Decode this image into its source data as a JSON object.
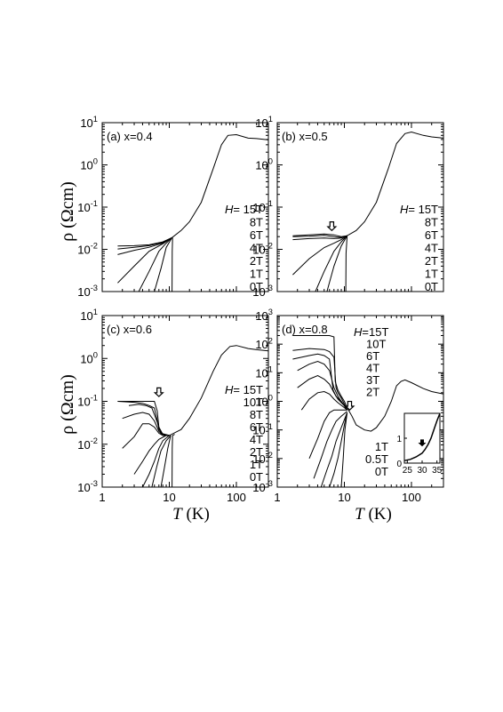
{
  "figure": {
    "ylabel": "ρ (Ωcm)",
    "xlabel_var": "T",
    "xlabel_unit": " (K)"
  },
  "chart_data": [
    {
      "type": "line",
      "panel": "(a) x=0.4",
      "x_scale": "log",
      "y_scale": "log",
      "xlim": [
        1,
        300
      ],
      "ylim": [
        0.001,
        10
      ],
      "x_ticks": [
        "1",
        "10",
        "100"
      ],
      "y_ticks": [
        "10^-3",
        "10^-2",
        "10^-1",
        "10^0",
        "10^1"
      ],
      "field_prefix": "H=",
      "field_labels": [
        "15T",
        "8T",
        "6T",
        "4T",
        "2T",
        "1T",
        "0T"
      ],
      "series": [
        {
          "name": "15T",
          "x": [
            1.7,
            3,
            5,
            8,
            11,
            15,
            20,
            30,
            45,
            60,
            75,
            100,
            150,
            200,
            300
          ],
          "y": [
            0.012,
            0.0122,
            0.0128,
            0.015,
            0.019,
            0.028,
            0.045,
            0.13,
            0.8,
            3.0,
            5.0,
            5.2,
            4.3,
            4.2,
            3.9
          ]
        },
        {
          "name": "8T",
          "x": [
            1.7,
            3,
            5,
            8,
            11
          ],
          "y": [
            0.0102,
            0.0112,
            0.0122,
            0.0145,
            0.019
          ]
        },
        {
          "name": "6T",
          "x": [
            1.7,
            3,
            5,
            8,
            11
          ],
          "y": [
            0.0075,
            0.0095,
            0.0112,
            0.014,
            0.019
          ]
        },
        {
          "name": "4T",
          "x": [
            1.7,
            3,
            5,
            8,
            11
          ],
          "y": [
            0.0016,
            0.004,
            0.009,
            0.0135,
            0.019
          ]
        },
        {
          "name": "2T",
          "x": [
            3.5,
            5,
            7,
            9,
            11
          ],
          "y": [
            0.001,
            0.003,
            0.009,
            0.014,
            0.019
          ]
        },
        {
          "name": "1T",
          "x": [
            6,
            7.5,
            9,
            11
          ],
          "y": [
            0.001,
            0.0035,
            0.011,
            0.019
          ]
        },
        {
          "name": "0T",
          "x": [
            11,
            11.05,
            11.2
          ],
          "y": [
            0.001,
            0.009,
            0.019
          ]
        }
      ]
    },
    {
      "type": "line",
      "panel": "(b) x=0.5",
      "x_scale": "log",
      "y_scale": "log",
      "xlim": [
        1,
        300
      ],
      "ylim": [
        0.001,
        10
      ],
      "x_ticks": [
        "1",
        "10",
        "100"
      ],
      "y_ticks": [
        "10^-3",
        "10^-2",
        "10^-1",
        "10^0",
        "10^1"
      ],
      "field_prefix": "H=",
      "field_labels": [
        "15T",
        "8T",
        "6T",
        "4T",
        "2T",
        "1T",
        "0T"
      ],
      "arrow": {
        "x": 6.5,
        "y": 0.028
      },
      "series": [
        {
          "name": "15T",
          "x": [
            1.7,
            3,
            5,
            7,
            9,
            11,
            15,
            20,
            30,
            45,
            60,
            80,
            100,
            150,
            200,
            300
          ],
          "y": [
            0.021,
            0.022,
            0.023,
            0.022,
            0.02,
            0.021,
            0.028,
            0.045,
            0.13,
            0.8,
            3.2,
            5.5,
            6.0,
            5.0,
            4.6,
            4.3
          ]
        },
        {
          "name": "8T",
          "x": [
            1.7,
            3,
            5,
            7,
            9,
            11
          ],
          "y": [
            0.02,
            0.0205,
            0.0215,
            0.02,
            0.019,
            0.021
          ]
        },
        {
          "name": "6T",
          "x": [
            1.7,
            3,
            5,
            7,
            9,
            11
          ],
          "y": [
            0.017,
            0.018,
            0.0185,
            0.018,
            0.0185,
            0.021
          ]
        },
        {
          "name": "4T",
          "x": [
            1.7,
            3,
            5,
            7,
            9,
            11
          ],
          "y": [
            0.0025,
            0.006,
            0.011,
            0.014,
            0.017,
            0.021
          ]
        },
        {
          "name": "2T",
          "x": [
            3.7,
            5,
            7,
            9,
            11
          ],
          "y": [
            0.001,
            0.003,
            0.009,
            0.015,
            0.021
          ]
        },
        {
          "name": "1T",
          "x": [
            5.5,
            7,
            9,
            11
          ],
          "y": [
            0.001,
            0.004,
            0.012,
            0.021
          ]
        },
        {
          "name": "0T",
          "x": [
            10.5,
            10.6,
            11
          ],
          "y": [
            0.001,
            0.008,
            0.021
          ]
        }
      ]
    },
    {
      "type": "line",
      "panel": "(c) x=0.6",
      "x_scale": "log",
      "y_scale": "log",
      "xlim": [
        1,
        300
      ],
      "ylim": [
        0.001,
        10
      ],
      "x_ticks": [
        "1",
        "10",
        "100"
      ],
      "y_ticks": [
        "10^-3",
        "10^-2",
        "10^-1",
        "10^0",
        "10^1"
      ],
      "field_prefix": "H=",
      "field_labels": [
        "15T",
        "10T",
        "8T",
        "6T",
        "4T",
        "2T",
        "1T",
        "0T"
      ],
      "arrow": {
        "x": 7,
        "y": 0.13
      },
      "series": [
        {
          "name": "15T",
          "x": [
            1.7,
            3,
            5,
            6,
            6.6,
            7,
            8,
            10,
            15,
            20,
            30,
            45,
            60,
            80,
            100,
            150,
            200,
            300
          ],
          "y": [
            0.1,
            0.1,
            0.1,
            0.1,
            0.06,
            0.025,
            0.017,
            0.016,
            0.022,
            0.04,
            0.12,
            0.5,
            1.2,
            1.9,
            2.0,
            1.7,
            1.6,
            1.5
          ]
        },
        {
          "name": "10T",
          "x": [
            1.7,
            3,
            4,
            5,
            6,
            6.5,
            7,
            8,
            10
          ],
          "y": [
            0.1,
            0.095,
            0.09,
            0.08,
            0.07,
            0.04,
            0.022,
            0.017,
            0.016
          ]
        },
        {
          "name": "8T",
          "x": [
            2.5,
            3.5,
            4.5,
            5.5,
            6.5,
            7.5,
            10
          ],
          "y": [
            0.08,
            0.085,
            0.08,
            0.07,
            0.035,
            0.018,
            0.016
          ]
        },
        {
          "name": "6T",
          "x": [
            2,
            3,
            4,
            5,
            6,
            7,
            8,
            10
          ],
          "y": [
            0.04,
            0.05,
            0.055,
            0.05,
            0.035,
            0.02,
            0.016,
            0.016
          ]
        },
        {
          "name": "4T",
          "x": [
            2,
            3,
            4,
            5,
            6,
            7,
            8,
            10
          ],
          "y": [
            0.008,
            0.015,
            0.03,
            0.03,
            0.025,
            0.018,
            0.016,
            0.016
          ]
        },
        {
          "name": "2T",
          "x": [
            3,
            4,
            5,
            6,
            7,
            9,
            10
          ],
          "y": [
            0.002,
            0.004,
            0.007,
            0.01,
            0.013,
            0.016,
            0.016
          ]
        },
        {
          "name": "1T",
          "x": [
            4,
            5,
            6,
            7,
            8,
            10
          ],
          "y": [
            0.001,
            0.002,
            0.004,
            0.008,
            0.012,
            0.016
          ]
        },
        {
          "name": "0T",
          "x": [
            5.5,
            6.5,
            7.5,
            9,
            10.5
          ],
          "y": [
            0.001,
            0.003,
            0.007,
            0.012,
            0.016
          ]
        },
        {
          "name": "",
          "x": [
            7.5,
            8.5,
            9.5,
            10.5
          ],
          "y": [
            0.001,
            0.003,
            0.008,
            0.016
          ]
        },
        {
          "name": "",
          "x": [
            11,
            11.05,
            11.2,
            12
          ],
          "y": [
            0.001,
            0.008,
            0.016,
            0.017
          ]
        }
      ]
    },
    {
      "type": "line",
      "panel": "(d) x=0.8",
      "x_scale": "log",
      "y_scale": "log",
      "xlim": [
        1,
        300
      ],
      "ylim": [
        0.001,
        1000
      ],
      "x_ticks": [
        "1",
        "10",
        "100"
      ],
      "y_ticks": [
        "10^-3",
        "10^-2",
        "10^-1",
        "10^0",
        "10^1",
        "10^2",
        "10^3"
      ],
      "field_prefix": "H=",
      "field_labels_top": [
        "15T",
        "10T",
        "6T",
        "4T",
        "3T",
        "2T"
      ],
      "field_labels_bottom": [
        "1T",
        "0.5T",
        "0T"
      ],
      "arrow": {
        "x": 12,
        "y": 0.5
      },
      "series": [
        {
          "name": "15T",
          "x": [
            1.7,
            3,
            5,
            6,
            7,
            7.3,
            8,
            9,
            10,
            11,
            13,
            15,
            20,
            25,
            30,
            40,
            50,
            60,
            70,
            80,
            100,
            150,
            200,
            300
          ],
          "y": [
            200,
            200,
            200,
            200,
            180,
            5,
            2.5,
            1.5,
            1.0,
            0.6,
            0.3,
            0.15,
            0.1,
            0.09,
            0.12,
            0.3,
            1.0,
            3.5,
            5.0,
            5.6,
            4.5,
            2.8,
            2.2,
            1.8
          ]
        },
        {
          "name": "10T",
          "x": [
            1.7,
            3,
            5,
            6,
            7,
            7.5,
            8,
            9,
            10,
            11
          ],
          "y": [
            60,
            70,
            65,
            55,
            35,
            3,
            2,
            1.3,
            0.8,
            0.5
          ]
        },
        {
          "name": "6T",
          "x": [
            1.7,
            3,
            4,
            5,
            6,
            6.8,
            7.5,
            9,
            10,
            11
          ],
          "y": [
            30,
            40,
            45,
            40,
            30,
            2.5,
            1.5,
            1.0,
            0.7,
            0.5
          ]
        },
        {
          "name": "4T",
          "x": [
            2,
            3,
            4,
            5,
            6,
            7,
            8,
            9,
            10,
            11
          ],
          "y": [
            12,
            20,
            25,
            20,
            12,
            3,
            1.5,
            1.0,
            0.7,
            0.5
          ]
        },
        {
          "name": "3T",
          "x": [
            2,
            3,
            4,
            5,
            6,
            7,
            8,
            10,
            11
          ],
          "y": [
            3,
            6,
            8,
            6,
            4,
            2,
            1.2,
            0.7,
            0.5
          ]
        },
        {
          "name": "2T",
          "x": [
            2.3,
            3,
            4,
            5,
            6,
            7,
            8,
            10,
            11
          ],
          "y": [
            0.5,
            1.2,
            2,
            2.2,
            1.8,
            1.2,
            0.9,
            0.6,
            0.5
          ]
        },
        {
          "name": "1T",
          "x": [
            3,
            4,
            5,
            6,
            7,
            8,
            10,
            11
          ],
          "y": [
            0.01,
            0.05,
            0.2,
            0.4,
            0.5,
            0.5,
            0.5,
            0.5
          ]
        },
        {
          "name": "0.5T",
          "x": [
            3.5,
            4.5,
            5.5,
            6.5,
            7.5,
            9,
            11
          ],
          "y": [
            0.002,
            0.01,
            0.04,
            0.1,
            0.2,
            0.3,
            0.45
          ]
        },
        {
          "name": "0T",
          "x": [
            4.5,
            5.5,
            6.5,
            7.5,
            9,
            11
          ],
          "y": [
            0.001,
            0.004,
            0.012,
            0.04,
            0.12,
            0.4
          ]
        },
        {
          "name": "",
          "x": [
            6,
            7,
            8,
            9,
            10,
            11
          ],
          "y": [
            0.001,
            0.003,
            0.01,
            0.04,
            0.15,
            0.4
          ]
        },
        {
          "name": "",
          "x": [
            9,
            9.6,
            10.2,
            11
          ],
          "y": [
            0.001,
            0.01,
            0.1,
            0.4
          ]
        }
      ],
      "inset": {
        "type": "line",
        "xlim": [
          24,
          36
        ],
        "ylim": [
          0,
          2
        ],
        "x_ticks": [
          "25",
          "30",
          "35"
        ],
        "y_ticks": [
          "0",
          "1"
        ],
        "arrow": {
          "x": 30,
          "y": 0.7
        },
        "series": [
          {
            "name": "",
            "x": [
              24,
              26,
              28,
              30,
              31,
              32,
              33,
              34,
              35,
              36
            ],
            "y": [
              0.1,
              0.15,
              0.25,
              0.4,
              0.55,
              0.75,
              1.0,
              1.35,
              1.7,
              2.0
            ]
          }
        ]
      }
    }
  ]
}
